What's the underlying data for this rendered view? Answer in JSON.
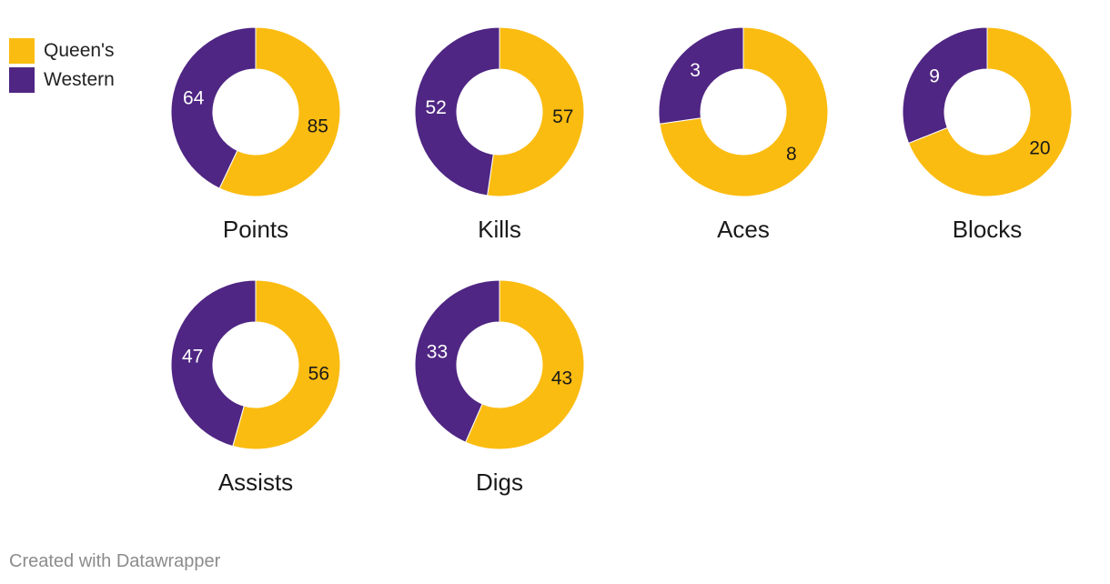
{
  "chart_data": {
    "type": "pie",
    "series_names": [
      "Queen's",
      "Western"
    ],
    "colors": {
      "Queen's": "#fbbc11",
      "Western": "#4f2683"
    },
    "label_colors": {
      "Queen's": "#1a1a1a",
      "Western": "#ffffff"
    },
    "categories": [
      "Points",
      "Kills",
      "Aces",
      "Blocks",
      "Assists",
      "Digs"
    ],
    "series": [
      {
        "name": "Queen's",
        "values": [
          85,
          57,
          8,
          20,
          56,
          43
        ]
      },
      {
        "name": "Western",
        "values": [
          64,
          52,
          3,
          9,
          47,
          33
        ]
      }
    ]
  },
  "legend": [
    {
      "label": "Queen's",
      "color": "#fbbc11"
    },
    {
      "label": "Western",
      "color": "#4f2683"
    }
  ],
  "footer": {
    "credit": "Created with Datawrapper"
  }
}
